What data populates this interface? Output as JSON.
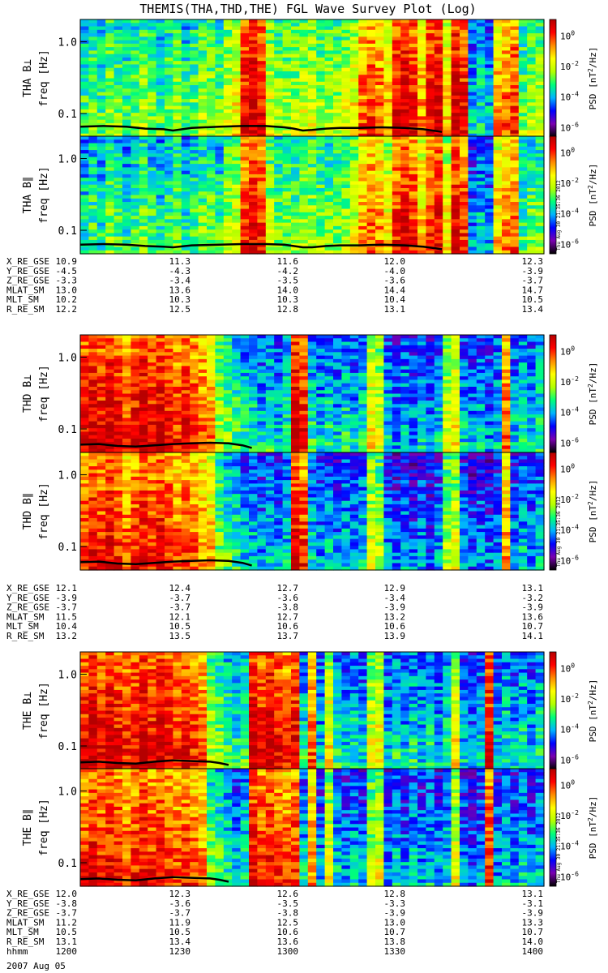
{
  "title": "THEMIS(THA,THD,THE) FGL Wave Survey Plot (Log)",
  "colors": {
    "scale": [
      "#000000",
      "#7a00b0",
      "#0000ff",
      "#00b4ff",
      "#00ff7a",
      "#b4ff00",
      "#ffff00",
      "#ff8c00",
      "#ff0000",
      "#b40000"
    ]
  },
  "colorbar": {
    "label_prefix": "PSD [nT",
    "label_suffix": "/Hz]",
    "ticks": [
      "10^0",
      "10^-2",
      "10^-4",
      "10^-6"
    ],
    "stamp": "Thu Aug 30 21:35:36 2012"
  },
  "freq_axis": {
    "label": "freq [Hz]",
    "ticks": [
      "1.0",
      "0.1"
    ]
  },
  "chart_data": {
    "type": "heatmap",
    "panels": [
      {
        "id": "tha-bperp",
        "ylabel": "THA B⊥",
        "group": 0,
        "activity": [
          0.4,
          0.45,
          0.4,
          0.5,
          0.45,
          0.4,
          0.45,
          0.5,
          0.45,
          0.4,
          0.45,
          0.5,
          0.4,
          0.45,
          0.5,
          0.5,
          0.45,
          0.55,
          0.6,
          0.85,
          0.9,
          0.85,
          0.55,
          0.5,
          0.5,
          0.5,
          0.55,
          0.55,
          0.5,
          0.5,
          0.5,
          0.55,
          0.6,
          0.75,
          0.8,
          0.75,
          0.65,
          0.85,
          0.9,
          0.85,
          0.7,
          0.85,
          0.9,
          0.65,
          0.9,
          0.85,
          0.3,
          0.35,
          0.3,
          0.7,
          0.75,
          0.8,
          0.45,
          0.5,
          0.5
        ],
        "curve": [
          [
            0,
            0.16
          ],
          [
            0.05,
            0.17
          ],
          [
            0.1,
            0.16
          ],
          [
            0.14,
            0.13
          ],
          [
            0.18,
            0.12
          ],
          [
            0.2,
            0.1
          ],
          [
            0.24,
            0.14
          ],
          [
            0.3,
            0.16
          ],
          [
            0.35,
            0.17
          ],
          [
            0.4,
            0.17
          ],
          [
            0.44,
            0.15
          ],
          [
            0.46,
            0.13
          ],
          [
            0.48,
            0.1
          ],
          [
            0.5,
            0.11
          ],
          [
            0.53,
            0.13
          ],
          [
            0.56,
            0.14
          ],
          [
            0.6,
            0.14
          ],
          [
            0.65,
            0.15
          ],
          [
            0.7,
            0.14
          ],
          [
            0.74,
            0.12
          ],
          [
            0.76,
            0.1
          ],
          [
            0.78,
            0.08
          ]
        ]
      },
      {
        "id": "tha-bpar",
        "ylabel": "THA B∥",
        "group": 0,
        "activity": [
          0.35,
          0.4,
          0.35,
          0.45,
          0.4,
          0.35,
          0.4,
          0.45,
          0.4,
          0.35,
          0.4,
          0.45,
          0.35,
          0.4,
          0.45,
          0.45,
          0.4,
          0.5,
          0.55,
          0.8,
          0.85,
          0.8,
          0.5,
          0.45,
          0.45,
          0.45,
          0.5,
          0.5,
          0.45,
          0.45,
          0.45,
          0.5,
          0.55,
          0.7,
          0.75,
          0.7,
          0.6,
          0.8,
          0.85,
          0.8,
          0.65,
          0.8,
          0.85,
          0.6,
          0.85,
          0.8,
          0.25,
          0.3,
          0.25,
          0.65,
          0.7,
          0.75,
          0.4,
          0.45,
          0.45
        ],
        "curve": [
          [
            0,
            0.14
          ],
          [
            0.05,
            0.15
          ],
          [
            0.1,
            0.14
          ],
          [
            0.14,
            0.12
          ],
          [
            0.18,
            0.11
          ],
          [
            0.2,
            0.1
          ],
          [
            0.24,
            0.13
          ],
          [
            0.3,
            0.14
          ],
          [
            0.35,
            0.15
          ],
          [
            0.4,
            0.15
          ],
          [
            0.44,
            0.14
          ],
          [
            0.46,
            0.12
          ],
          [
            0.48,
            0.1
          ],
          [
            0.5,
            0.1
          ],
          [
            0.53,
            0.12
          ],
          [
            0.56,
            0.13
          ],
          [
            0.6,
            0.13
          ],
          [
            0.65,
            0.14
          ],
          [
            0.7,
            0.13
          ],
          [
            0.74,
            0.11
          ],
          [
            0.76,
            0.09
          ],
          [
            0.78,
            0.07
          ]
        ]
      },
      {
        "id": "thd-bperp",
        "ylabel": "THD B⊥",
        "group": 1,
        "activity": [
          0.85,
          0.9,
          0.85,
          0.9,
          0.85,
          0.8,
          0.85,
          0.9,
          0.85,
          0.9,
          0.85,
          0.8,
          0.85,
          0.8,
          0.75,
          0.7,
          0.5,
          0.45,
          0.4,
          0.35,
          0.35,
          0.3,
          0.35,
          0.3,
          0.35,
          0.9,
          0.85,
          0.35,
          0.3,
          0.35,
          0.3,
          0.35,
          0.3,
          0.35,
          0.6,
          0.55,
          0.3,
          0.25,
          0.3,
          0.25,
          0.3,
          0.25,
          0.3,
          0.55,
          0.6,
          0.3,
          0.25,
          0.3,
          0.25,
          0.3,
          0.75,
          0.3,
          0.35,
          0.3,
          0.35
        ],
        "curve": [
          [
            0,
            0.12
          ],
          [
            0.04,
            0.13
          ],
          [
            0.08,
            0.1
          ],
          [
            0.12,
            0.09
          ],
          [
            0.16,
            0.11
          ],
          [
            0.2,
            0.13
          ],
          [
            0.24,
            0.14
          ],
          [
            0.28,
            0.15
          ],
          [
            0.32,
            0.14
          ],
          [
            0.35,
            0.11
          ],
          [
            0.37,
            0.07
          ]
        ]
      },
      {
        "id": "thd-bpar",
        "ylabel": "THD B∥",
        "group": 1,
        "activity": [
          0.8,
          0.85,
          0.8,
          0.85,
          0.8,
          0.75,
          0.8,
          0.85,
          0.8,
          0.85,
          0.8,
          0.75,
          0.8,
          0.75,
          0.7,
          0.65,
          0.45,
          0.4,
          0.35,
          0.3,
          0.3,
          0.25,
          0.3,
          0.25,
          0.3,
          0.85,
          0.8,
          0.3,
          0.25,
          0.3,
          0.25,
          0.3,
          0.25,
          0.3,
          0.55,
          0.5,
          0.25,
          0.2,
          0.25,
          0.2,
          0.25,
          0.2,
          0.25,
          0.5,
          0.55,
          0.25,
          0.2,
          0.25,
          0.2,
          0.25,
          0.7,
          0.25,
          0.3,
          0.25,
          0.3
        ],
        "curve": [
          [
            0,
            0.12
          ],
          [
            0.04,
            0.13
          ],
          [
            0.08,
            0.1
          ],
          [
            0.12,
            0.09
          ],
          [
            0.16,
            0.11
          ],
          [
            0.2,
            0.13
          ],
          [
            0.24,
            0.14
          ],
          [
            0.28,
            0.15
          ],
          [
            0.32,
            0.14
          ],
          [
            0.35,
            0.11
          ],
          [
            0.37,
            0.07
          ]
        ]
      },
      {
        "id": "the-bperp",
        "ylabel": "THE B⊥",
        "group": 2,
        "activity": [
          0.85,
          0.9,
          0.85,
          0.9,
          0.85,
          0.8,
          0.85,
          0.9,
          0.85,
          0.9,
          0.85,
          0.8,
          0.85,
          0.8,
          0.75,
          0.5,
          0.45,
          0.4,
          0.35,
          0.4,
          0.9,
          0.85,
          0.9,
          0.85,
          0.8,
          0.85,
          0.35,
          0.75,
          0.3,
          0.6,
          0.35,
          0.3,
          0.35,
          0.3,
          0.55,
          0.6,
          0.3,
          0.35,
          0.3,
          0.35,
          0.3,
          0.35,
          0.3,
          0.35,
          0.6,
          0.3,
          0.25,
          0.3,
          0.85,
          0.3,
          0.35,
          0.3,
          0.35,
          0.3,
          0.35
        ],
        "curve": [
          [
            0,
            0.11
          ],
          [
            0.04,
            0.12
          ],
          [
            0.08,
            0.1
          ],
          [
            0.12,
            0.09
          ],
          [
            0.16,
            0.12
          ],
          [
            0.2,
            0.14
          ],
          [
            0.24,
            0.13
          ],
          [
            0.28,
            0.12
          ],
          [
            0.3,
            0.1
          ],
          [
            0.32,
            0.07
          ]
        ]
      },
      {
        "id": "the-bpar",
        "ylabel": "THE B∥",
        "group": 2,
        "activity": [
          0.8,
          0.85,
          0.8,
          0.85,
          0.8,
          0.75,
          0.8,
          0.85,
          0.8,
          0.85,
          0.8,
          0.75,
          0.8,
          0.75,
          0.7,
          0.45,
          0.4,
          0.35,
          0.3,
          0.35,
          0.85,
          0.8,
          0.85,
          0.8,
          0.75,
          0.8,
          0.3,
          0.7,
          0.25,
          0.55,
          0.3,
          0.25,
          0.3,
          0.25,
          0.5,
          0.55,
          0.25,
          0.3,
          0.25,
          0.3,
          0.25,
          0.3,
          0.25,
          0.3,
          0.55,
          0.25,
          0.2,
          0.25,
          0.8,
          0.25,
          0.3,
          0.25,
          0.3,
          0.25,
          0.3
        ],
        "curve": [
          [
            0,
            0.11
          ],
          [
            0.04,
            0.12
          ],
          [
            0.08,
            0.1
          ],
          [
            0.12,
            0.09
          ],
          [
            0.16,
            0.12
          ],
          [
            0.2,
            0.14
          ],
          [
            0.24,
            0.13
          ],
          [
            0.28,
            0.12
          ],
          [
            0.3,
            0.1
          ],
          [
            0.32,
            0.07
          ]
        ]
      }
    ],
    "ephemeris": [
      {
        "rows": [
          [
            "X_RE_GSE",
            "10.9",
            "11.3",
            "11.6",
            "12.0",
            "12.3"
          ],
          [
            "Y_RE_GSE",
            "-4.5",
            "-4.3",
            "-4.2",
            "-4.0",
            "-3.9"
          ],
          [
            "Z_RE_GSE",
            "-3.3",
            "-3.4",
            "-3.5",
            "-3.6",
            "-3.7"
          ],
          [
            "MLAT_SM",
            "13.0",
            "13.6",
            "14.0",
            "14.4",
            "14.7"
          ],
          [
            "MLT_SM",
            "10.2",
            "10.3",
            "10.3",
            "10.4",
            "10.5"
          ],
          [
            "R_RE_SM",
            "12.2",
            "12.5",
            "12.8",
            "13.1",
            "13.4"
          ]
        ]
      },
      {
        "rows": [
          [
            "X_RE_GSE",
            "12.1",
            "12.4",
            "12.7",
            "12.9",
            "13.1"
          ],
          [
            "Y_RE_GSE",
            "-3.9",
            "-3.7",
            "-3.6",
            "-3.4",
            "-3.2"
          ],
          [
            "Z_RE_GSE",
            "-3.7",
            "-3.7",
            "-3.8",
            "-3.9",
            "-3.9"
          ],
          [
            "MLAT_SM",
            "11.5",
            "12.1",
            "12.7",
            "13.2",
            "13.6"
          ],
          [
            "MLT_SM",
            "10.4",
            "10.5",
            "10.6",
            "10.6",
            "10.7"
          ],
          [
            "R_RE_SM",
            "13.2",
            "13.5",
            "13.7",
            "13.9",
            "14.1"
          ]
        ]
      },
      {
        "rows": [
          [
            "X_RE_GSE",
            "12.0",
            "12.3",
            "12.6",
            "12.8",
            "13.1"
          ],
          [
            "Y_RE_GSE",
            "-3.8",
            "-3.6",
            "-3.5",
            "-3.3",
            "-3.1"
          ],
          [
            "Z_RE_GSE",
            "-3.7",
            "-3.7",
            "-3.8",
            "-3.9",
            "-3.9"
          ],
          [
            "MLAT_SM",
            "11.2",
            "11.9",
            "12.5",
            "13.0",
            "13.3"
          ],
          [
            "MLT_SM",
            "10.5",
            "10.5",
            "10.6",
            "10.7",
            "10.7"
          ],
          [
            "R_RE_SM",
            "13.1",
            "13.4",
            "13.6",
            "13.8",
            "14.0"
          ],
          [
            "hhmm",
            "1200",
            "1230",
            "1300",
            "1330",
            "1400"
          ]
        ]
      }
    ],
    "date": "2007 Aug 05"
  }
}
